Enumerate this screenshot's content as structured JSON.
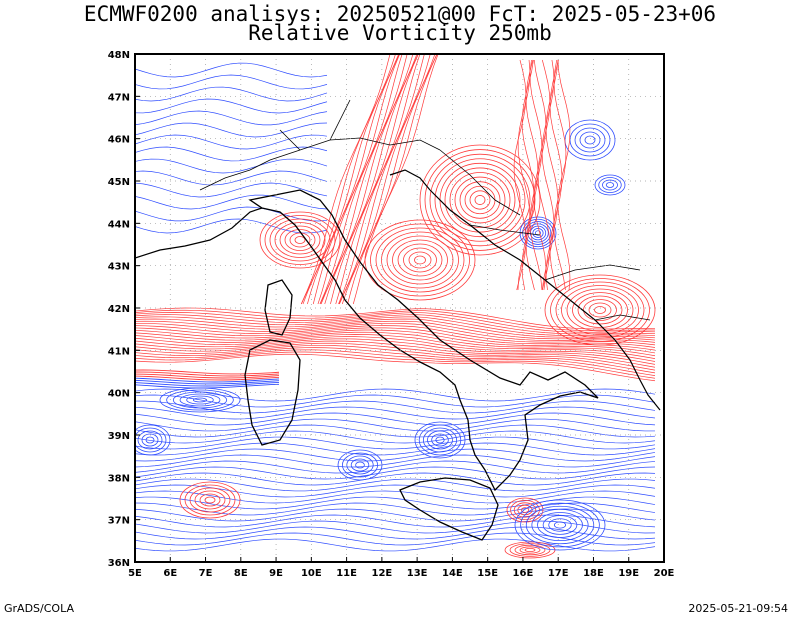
{
  "title": {
    "line1": "ECMWF0200 analisys: 20250521@00 FcT: 2025-05-23+06",
    "line2": "Relative Vorticity 250mb"
  },
  "map": {
    "region": "Italy and central Mediterranean",
    "lat_labels": [
      "48N",
      "47N",
      "46N",
      "45N",
      "44N",
      "43N",
      "42N",
      "41N",
      "40N",
      "39N",
      "38N",
      "37N",
      "36N"
    ],
    "lon_labels": [
      "5E",
      "6E",
      "7E",
      "8E",
      "9E",
      "10E",
      "11E",
      "12E",
      "13E",
      "14E",
      "15E",
      "16E",
      "17E",
      "18E",
      "19E",
      "20E"
    ],
    "colors": {
      "positive_vorticity": "#ff3b3b",
      "negative_vorticity": "#2f4dff",
      "coastline": "#000000",
      "grid": "#9a9a9a"
    }
  },
  "footer": {
    "left": "GrADS/COLA",
    "right": "2025-05-21-09:54"
  }
}
